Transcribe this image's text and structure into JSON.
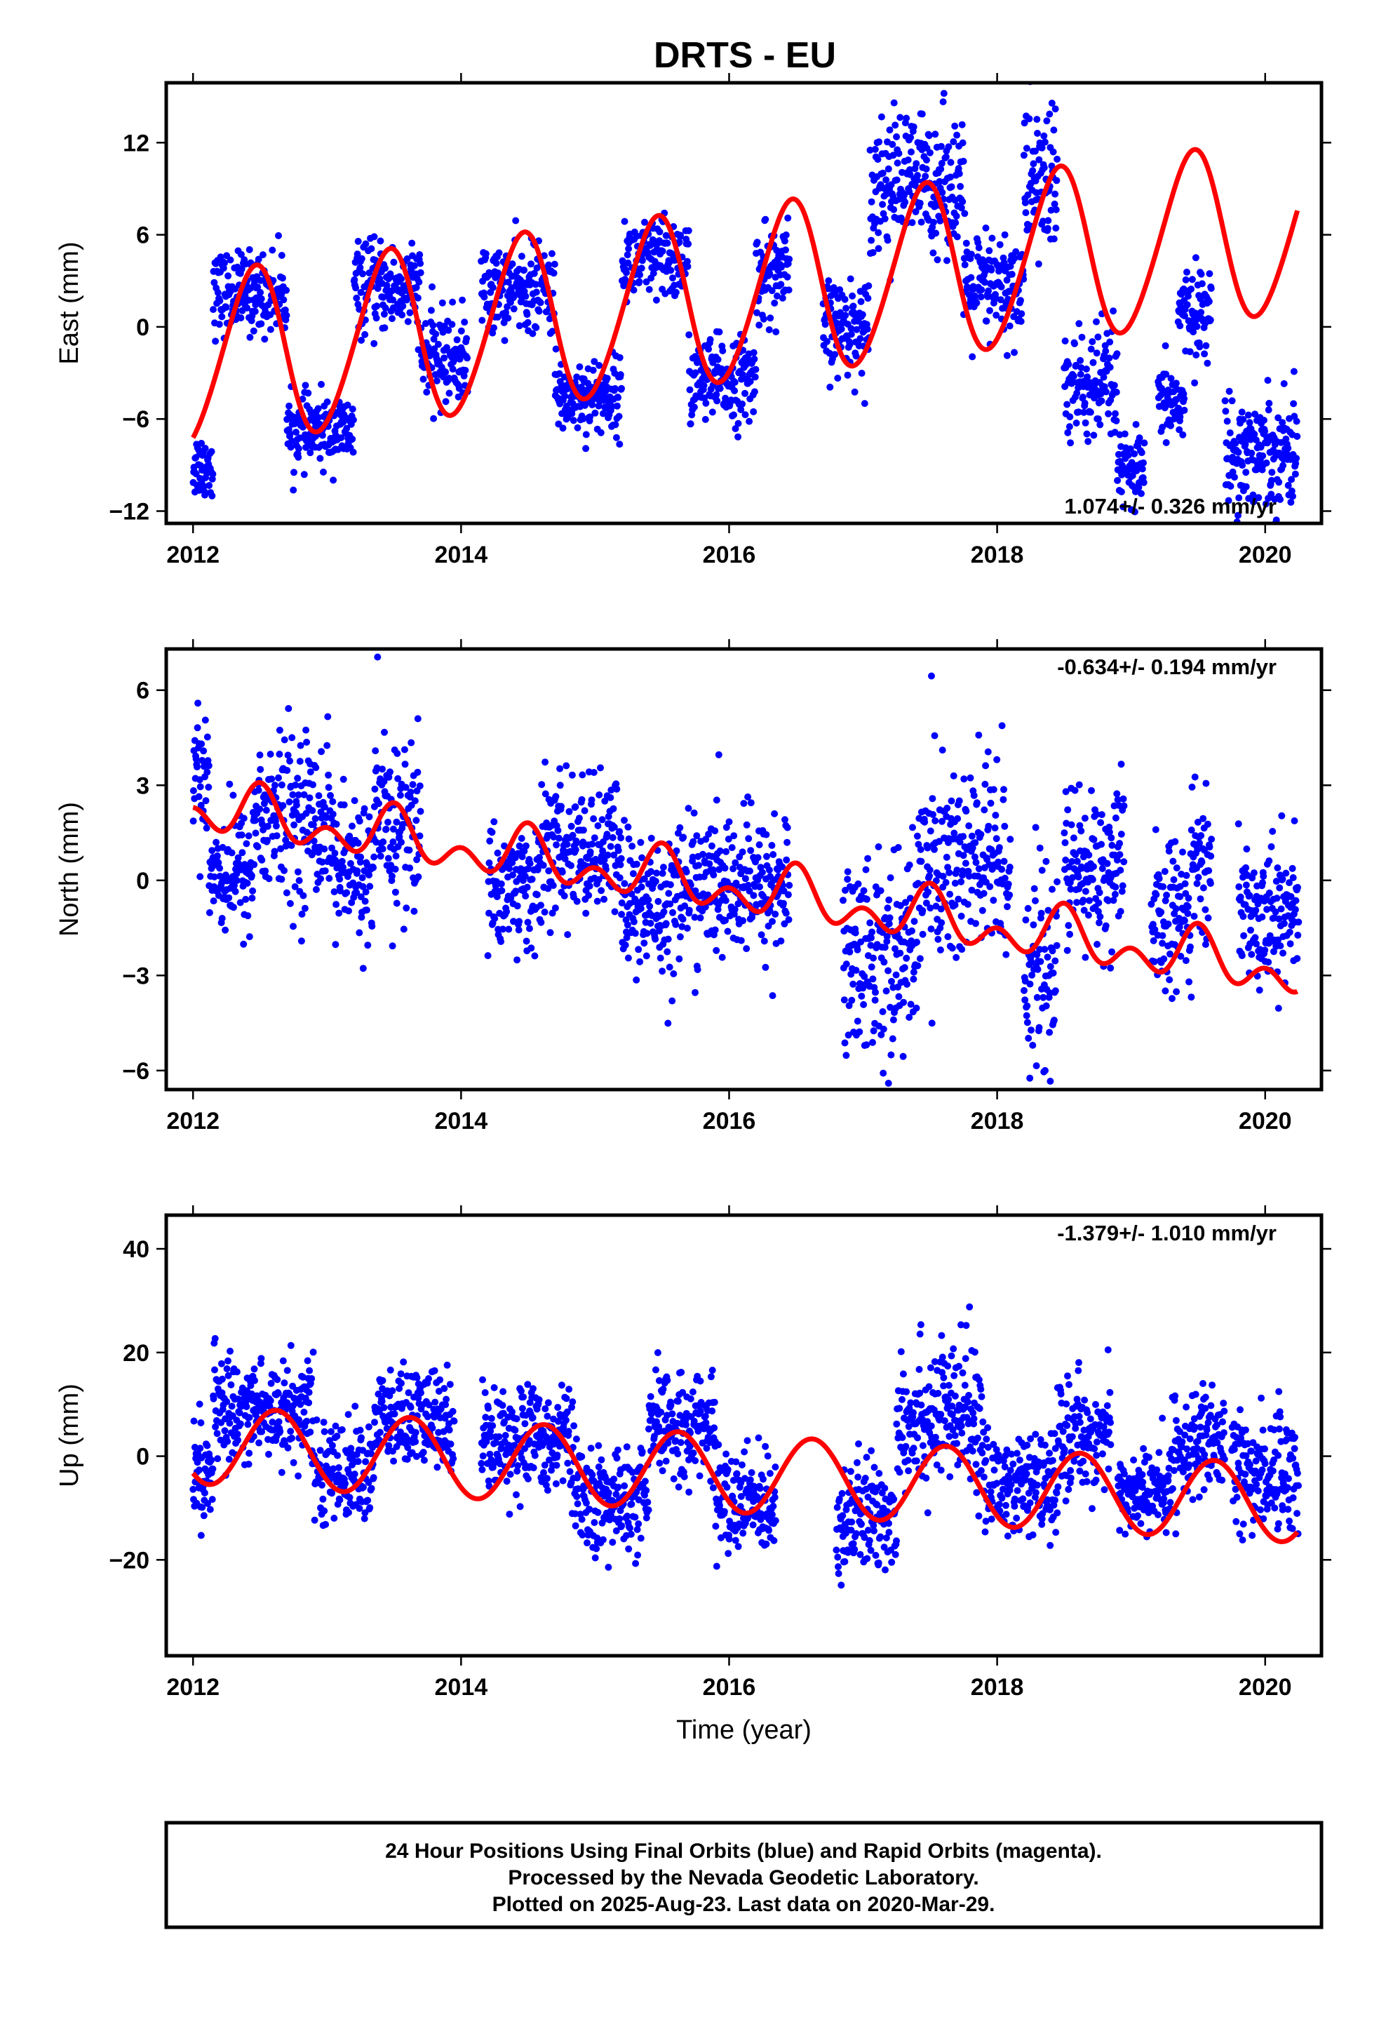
{
  "title": "DRTS - EU",
  "footer": {
    "lines": [
      "24 Hour Positions Using Final Orbits (blue) and Rapid Orbits (magenta).",
      "Processed by the Nevada Geodetic Laboratory.",
      "Plotted on 2025-Aug-23. Last data on 2020-Mar-29."
    ]
  },
  "colors": {
    "observations": "#0000ff",
    "model": "#ff0000",
    "frame": "#000000"
  },
  "chart_data": [
    {
      "type": "scatter",
      "id": "east",
      "ylabel": "East (mm)",
      "xlabel": "",
      "xlim": [
        2011.8,
        2020.42
      ],
      "ylim": [
        -12.8,
        15.9
      ],
      "xticks": [
        2012,
        2014,
        2016,
        2018,
        2020
      ],
      "yticks": [
        -12,
        -6,
        0,
        6,
        12
      ],
      "rate_label": "1.074+/- 0.326 mm/yr",
      "model": {
        "trend_mm_per_yr": 1.074,
        "offset_mm": -2.3,
        "annual_amp_mm": 5.6,
        "annual_peak_phase_yr": 0.45,
        "semiannual_amp_mm": 0.5,
        "semiannual_peak_phase_yr": 0.05
      },
      "data_segments": [
        [
          2012.0,
          2012.15,
          -9.0,
          1.1
        ],
        [
          2012.15,
          2012.7,
          2.2,
          1.3
        ],
        [
          2012.7,
          2013.2,
          -6.8,
          1.1
        ],
        [
          2013.2,
          2013.7,
          2.5,
          1.4
        ],
        [
          2013.7,
          2014.05,
          -2.0,
          1.5
        ],
        [
          2014.15,
          2014.7,
          2.5,
          1.4
        ],
        [
          2014.7,
          2015.2,
          -4.5,
          1.2
        ],
        [
          2015.2,
          2015.7,
          4.3,
          1.4
        ],
        [
          2015.7,
          2016.2,
          -3.5,
          1.4
        ],
        [
          2016.2,
          2016.45,
          3.5,
          1.6
        ],
        [
          2016.7,
          2017.05,
          0.0,
          1.5
        ],
        [
          2017.05,
          2017.75,
          9.5,
          2.2
        ],
        [
          2017.75,
          2018.2,
          2.5,
          1.8
        ],
        [
          2018.2,
          2018.45,
          9.5,
          2.6
        ],
        [
          2018.5,
          2018.9,
          -4.0,
          2.0
        ],
        [
          2018.9,
          2019.1,
          -9.5,
          1.2
        ],
        [
          2019.2,
          2019.4,
          -5.0,
          1.2
        ],
        [
          2019.35,
          2019.6,
          1.0,
          1.4
        ],
        [
          2019.7,
          2020.24,
          -8.0,
          1.8
        ]
      ]
    },
    {
      "type": "scatter",
      "id": "north",
      "ylabel": "North (mm)",
      "xlabel": "",
      "xlim": [
        2011.8,
        2020.42
      ],
      "ylim": [
        -6.6,
        7.3
      ],
      "xticks": [
        2012,
        2014,
        2016,
        2018,
        2020
      ],
      "yticks": [
        -6,
        -3,
        0,
        3,
        6
      ],
      "rate_label": "-0.634+/- 0.194 mm/yr",
      "model": {
        "trend_mm_per_yr": -0.634,
        "offset_mm": 2.3,
        "annual_amp_mm": 0.55,
        "annual_peak_phase_yr": 0.5,
        "semiannual_amp_mm": 0.55,
        "semiannual_peak_phase_yr": 0.0
      },
      "data_segments": [
        [
          2012.0,
          2012.12,
          3.5,
          1.0
        ],
        [
          2012.12,
          2012.45,
          0.3,
          1.0
        ],
        [
          2012.45,
          2013.05,
          2.0,
          1.3
        ],
        [
          2013.05,
          2013.35,
          0.3,
          1.1
        ],
        [
          2013.35,
          2013.7,
          1.7,
          1.5
        ],
        [
          2014.2,
          2014.6,
          -0.2,
          1.0
        ],
        [
          2014.6,
          2015.2,
          1.0,
          1.1
        ],
        [
          2015.2,
          2015.6,
          -0.8,
          1.2
        ],
        [
          2015.6,
          2016.45,
          -0.2,
          1.1
        ],
        [
          2016.85,
          2017.4,
          -2.3,
          1.6
        ],
        [
          2017.4,
          2018.1,
          0.5,
          1.8
        ],
        [
          2018.2,
          2018.45,
          -2.8,
          1.5
        ],
        [
          2018.5,
          2018.95,
          0.3,
          1.3
        ],
        [
          2019.15,
          2019.45,
          -1.2,
          1.2
        ],
        [
          2019.45,
          2019.6,
          0.7,
          1.0
        ],
        [
          2019.8,
          2020.25,
          -1.0,
          1.1
        ]
      ]
    },
    {
      "type": "scatter",
      "id": "up",
      "ylabel": "Up (mm)",
      "xlabel": "Time (year)",
      "xlim": [
        2011.8,
        2020.42
      ],
      "ylim": [
        -38.5,
        46.5
      ],
      "xticks": [
        2012,
        2014,
        2016,
        2018,
        2020
      ],
      "yticks": [
        -20,
        0,
        20,
        40
      ],
      "rate_label": "-1.379+/- 1.010 mm/yr",
      "model": {
        "trend_mm_per_yr": -1.379,
        "offset_mm": 2.2,
        "annual_amp_mm": 7.5,
        "annual_peak_phase_yr": 0.62,
        "semiannual_amp_mm": 0.0,
        "semiannual_peak_phase_yr": 0.0
      },
      "data_segments": [
        [
          2012.0,
          2012.15,
          -3.0,
          5.0
        ],
        [
          2012.15,
          2012.9,
          9.0,
          5.0
        ],
        [
          2012.9,
          2013.35,
          -3.0,
          4.5
        ],
        [
          2013.35,
          2013.95,
          7.0,
          5.0
        ],
        [
          2014.15,
          2014.85,
          3.5,
          5.0
        ],
        [
          2014.85,
          2015.4,
          -9.0,
          5.0
        ],
        [
          2015.4,
          2015.9,
          6.0,
          5.0
        ],
        [
          2015.9,
          2016.35,
          -9.0,
          5.0
        ],
        [
          2016.8,
          2017.25,
          -12.0,
          5.5
        ],
        [
          2017.25,
          2017.9,
          8.0,
          7.0
        ],
        [
          2017.9,
          2018.45,
          -6.0,
          5.0
        ],
        [
          2018.45,
          2018.85,
          4.0,
          5.0
        ],
        [
          2018.9,
          2019.3,
          -7.0,
          4.0
        ],
        [
          2019.3,
          2019.7,
          2.0,
          5.0
        ],
        [
          2019.75,
          2020.25,
          -3.0,
          6.0
        ]
      ]
    }
  ]
}
